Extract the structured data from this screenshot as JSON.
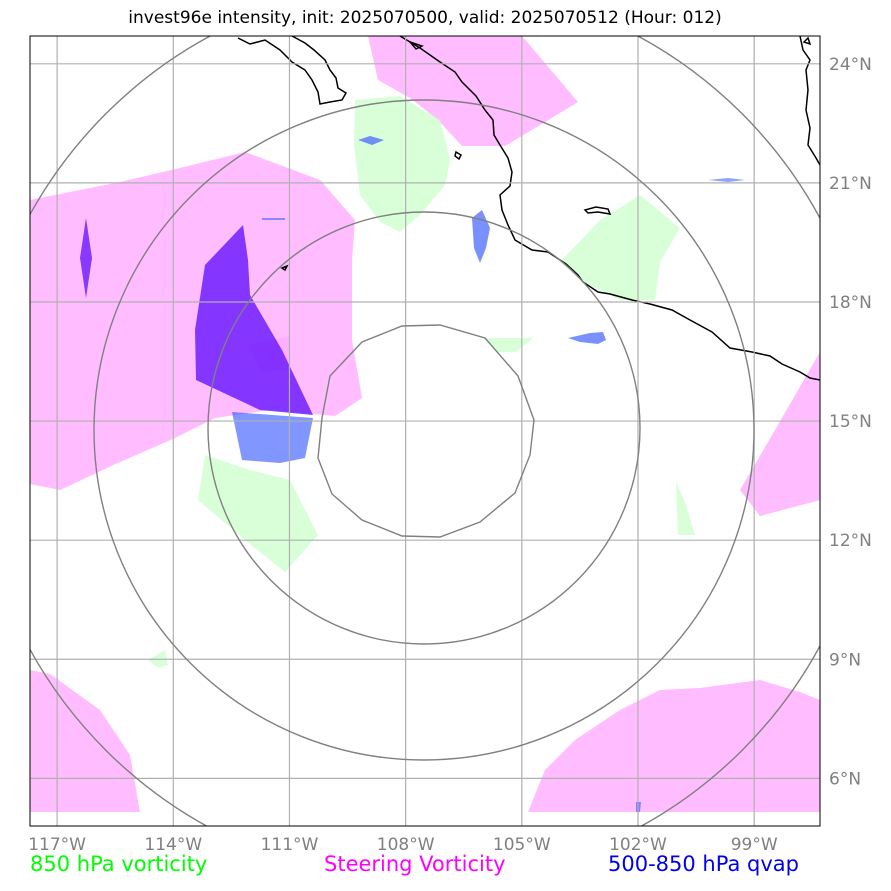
{
  "title": "invest96e intensity, init: 2025070500, valid: 2025070512 (Hour: 012)",
  "map": {
    "lon_range": [
      -117.7,
      -97.3
    ],
    "lat_range": [
      4.8,
      24.7
    ],
    "lon_ticks": [
      -117,
      -114,
      -111,
      -108,
      -105,
      -102,
      -99
    ],
    "lat_ticks": [
      6,
      9,
      12,
      15,
      18,
      21,
      24
    ],
    "lon_labels": [
      "117°W",
      "114°W",
      "111°W",
      "108°W",
      "105°W",
      "102°W",
      "99°W"
    ],
    "lat_labels": [
      "6°N",
      "9°N",
      "12°N",
      "15°N",
      "18°N",
      "21°N",
      "24°N"
    ],
    "grid": true,
    "range_rings_center": [
      -108.0,
      15.0
    ],
    "colors": {
      "vorticity_850": "#ccffcc",
      "steering_vorticity": "#ffaaff",
      "qvap": "#4444ff",
      "qvap_strong": "#5500ff",
      "coastline": "#000000",
      "rings": "#808080",
      "grid": "#b0b0b0"
    }
  },
  "legend": {
    "vort850": {
      "label": "850 hPa vorticity",
      "color": "#00ff00"
    },
    "steering": {
      "label": "Steering Vorticity",
      "color": "#ff00ff"
    },
    "qvap": {
      "label": "500-850 hPa qvap",
      "color": "#0000ee"
    }
  }
}
